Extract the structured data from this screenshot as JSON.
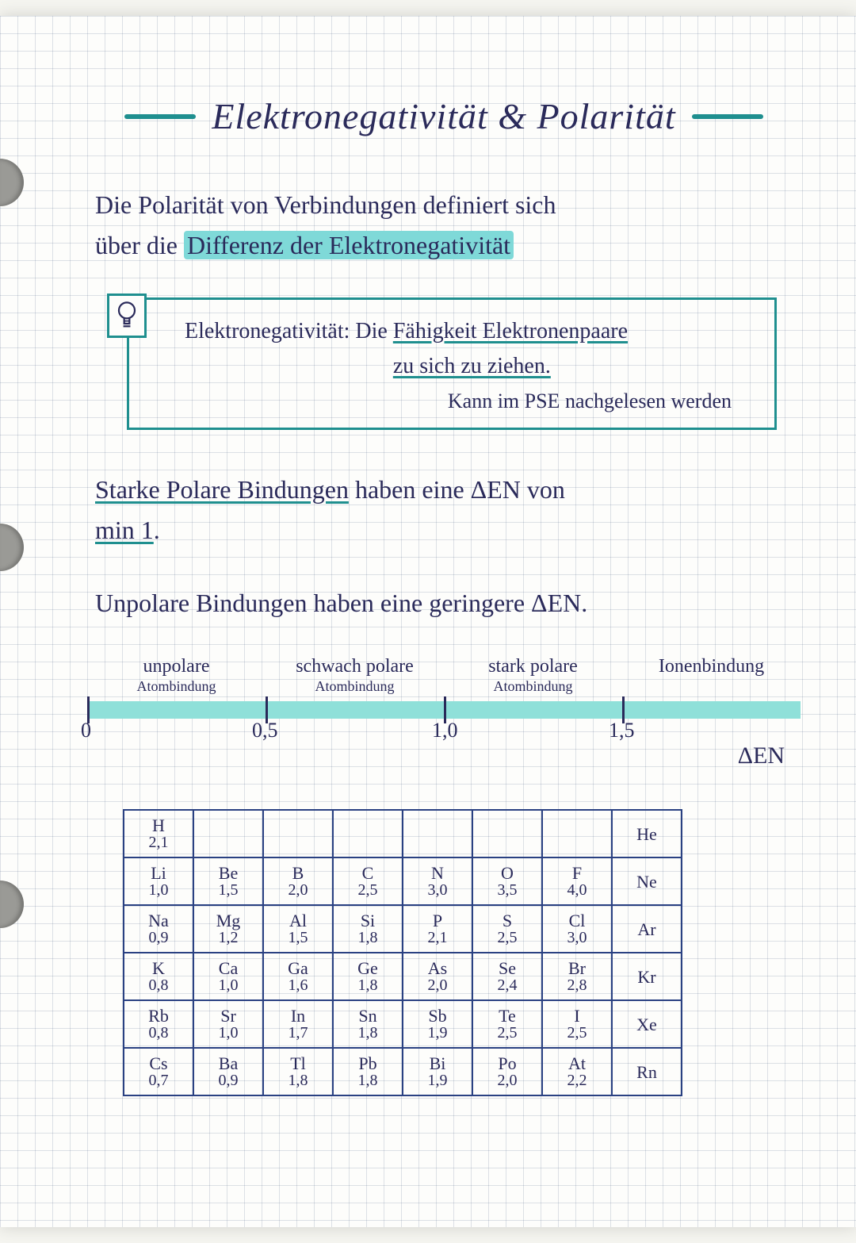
{
  "title": "Elektronegativität & Polarität",
  "intro_l1": "Die Polarität von Verbindungen definiert sich",
  "intro_l2a": "über die ",
  "intro_l2b": "Differenz der Elektronegativität",
  "definition": {
    "label": "Elektronegativität:",
    "body_a": "Die ",
    "body_u1": "Fähigkeit Elektronenpaare",
    "body_b": " ",
    "body_u2": "zu sich zu ziehen.",
    "sub": "Kann im PSE nachgelesen werden"
  },
  "rule1_a": "Starke Polare Bindungen",
  "rule1_b": " haben eine  ΔEN von",
  "rule1_c": "min 1",
  "rule1_d": ".",
  "rule2": "Unpolare Bindungen haben eine geringere ΔEN.",
  "scale": {
    "regions": [
      {
        "top": "unpolare",
        "sub": "Atombindung"
      },
      {
        "top": "schwach polare",
        "sub": "Atombindung"
      },
      {
        "top": "stark polare",
        "sub": "Atombindung"
      },
      {
        "top": "Ionenbindung",
        "sub": ""
      }
    ],
    "ticks": [
      0,
      0.5,
      1.0,
      1.5
    ],
    "tick_labels": [
      "0",
      "0,5",
      "1,0",
      "1,5"
    ],
    "axis_label": "ΔEN",
    "bar_color": "#8fe0d9"
  },
  "ptable": {
    "border_color": "#2a4182",
    "rows": [
      [
        {
          "s": "H",
          "v": "2,1"
        },
        null,
        null,
        null,
        null,
        null,
        null,
        {
          "s": "He",
          "v": ""
        }
      ],
      [
        {
          "s": "Li",
          "v": "1,0"
        },
        {
          "s": "Be",
          "v": "1,5"
        },
        {
          "s": "B",
          "v": "2,0"
        },
        {
          "s": "C",
          "v": "2,5"
        },
        {
          "s": "N",
          "v": "3,0"
        },
        {
          "s": "O",
          "v": "3,5"
        },
        {
          "s": "F",
          "v": "4,0"
        },
        {
          "s": "Ne",
          "v": ""
        }
      ],
      [
        {
          "s": "Na",
          "v": "0,9"
        },
        {
          "s": "Mg",
          "v": "1,2"
        },
        {
          "s": "Al",
          "v": "1,5"
        },
        {
          "s": "Si",
          "v": "1,8"
        },
        {
          "s": "P",
          "v": "2,1"
        },
        {
          "s": "S",
          "v": "2,5"
        },
        {
          "s": "Cl",
          "v": "3,0"
        },
        {
          "s": "Ar",
          "v": ""
        }
      ],
      [
        {
          "s": "K",
          "v": "0,8"
        },
        {
          "s": "Ca",
          "v": "1,0"
        },
        {
          "s": "Ga",
          "v": "1,6"
        },
        {
          "s": "Ge",
          "v": "1,8"
        },
        {
          "s": "As",
          "v": "2,0"
        },
        {
          "s": "Se",
          "v": "2,4"
        },
        {
          "s": "Br",
          "v": "2,8"
        },
        {
          "s": "Kr",
          "v": ""
        }
      ],
      [
        {
          "s": "Rb",
          "v": "0,8"
        },
        {
          "s": "Sr",
          "v": "1,0"
        },
        {
          "s": "In",
          "v": "1,7"
        },
        {
          "s": "Sn",
          "v": "1,8"
        },
        {
          "s": "Sb",
          "v": "1,9"
        },
        {
          "s": "Te",
          "v": "2,5"
        },
        {
          "s": "I",
          "v": "2,5"
        },
        {
          "s": "Xe",
          "v": ""
        }
      ],
      [
        {
          "s": "Cs",
          "v": "0,7"
        },
        {
          "s": "Ba",
          "v": "0,9"
        },
        {
          "s": "Tl",
          "v": "1,8"
        },
        {
          "s": "Pb",
          "v": "1,8"
        },
        {
          "s": "Bi",
          "v": "1,9"
        },
        {
          "s": "Po",
          "v": "2,0"
        },
        {
          "s": "At",
          "v": "2,2"
        },
        {
          "s": "Rn",
          "v": ""
        }
      ]
    ]
  },
  "colors": {
    "ink": "#2a2a5a",
    "teal": "#1f8f8f",
    "highlight": "#7fd9d8"
  }
}
